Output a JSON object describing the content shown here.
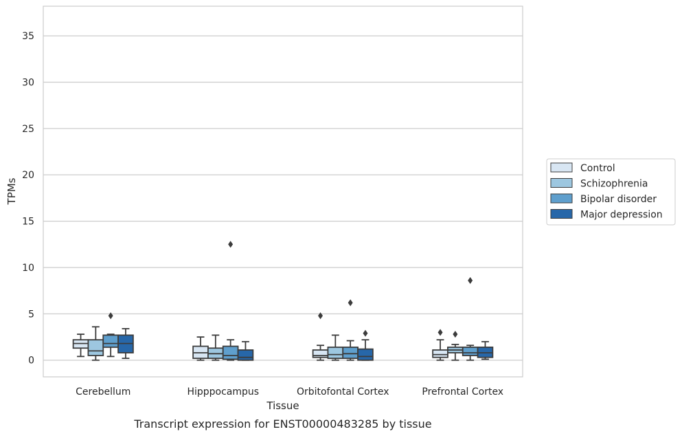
{
  "caption": "Transcript expression for ENST00000483285 by tissue",
  "chart_data": {
    "type": "box",
    "xlabel": "Tissue",
    "ylabel": "TPMs",
    "ylim": [
      -1.8,
      38.2
    ],
    "yticks": [
      0,
      5,
      10,
      15,
      20,
      25,
      30,
      35
    ],
    "grid": "horizontal",
    "legend_position": "right",
    "categories": [
      "Cerebellum",
      "Hipppocampus",
      "Orbitofontal Cortex",
      "Prefrontal Cortex"
    ],
    "series": [
      {
        "name": "Control",
        "color": "#d8e6f3",
        "boxes": [
          {
            "whislo": 0.4,
            "q1": 1.3,
            "med": 1.8,
            "q3": 2.2,
            "whishi": 2.8,
            "fliers": []
          },
          {
            "whislo": 0.0,
            "q1": 0.2,
            "med": 0.8,
            "q3": 1.5,
            "whishi": 2.5,
            "fliers": []
          },
          {
            "whislo": 0.0,
            "q1": 0.3,
            "med": 0.5,
            "q3": 1.1,
            "whishi": 1.6,
            "fliers": [
              4.8
            ]
          },
          {
            "whislo": 0.0,
            "q1": 0.3,
            "med": 0.6,
            "q3": 1.1,
            "whishi": 2.2,
            "fliers": [
              3.0
            ]
          }
        ]
      },
      {
        "name": "Schizophrenia",
        "color": "#9dc7e0",
        "boxes": [
          {
            "whislo": 0.0,
            "q1": 0.5,
            "med": 1.0,
            "q3": 2.2,
            "whishi": 3.6,
            "fliers": []
          },
          {
            "whislo": 0.0,
            "q1": 0.2,
            "med": 0.7,
            "q3": 1.3,
            "whishi": 2.7,
            "fliers": []
          },
          {
            "whislo": 0.0,
            "q1": 0.2,
            "med": 0.6,
            "q3": 1.4,
            "whishi": 2.7,
            "fliers": []
          },
          {
            "whislo": 0.0,
            "q1": 0.8,
            "med": 1.1,
            "q3": 1.4,
            "whishi": 1.7,
            "fliers": [
              2.8
            ]
          }
        ]
      },
      {
        "name": "Bipolar disorder",
        "color": "#5f9fcd",
        "boxes": [
          {
            "whislo": 0.4,
            "q1": 1.4,
            "med": 1.8,
            "q3": 2.7,
            "whishi": 2.8,
            "fliers": [
              4.8
            ]
          },
          {
            "whislo": 0.0,
            "q1": 0.1,
            "med": 0.5,
            "q3": 1.5,
            "whishi": 2.2,
            "fliers": [
              12.5
            ]
          },
          {
            "whislo": 0.0,
            "q1": 0.2,
            "med": 0.7,
            "q3": 1.4,
            "whishi": 2.1,
            "fliers": [
              6.2
            ]
          },
          {
            "whislo": 0.0,
            "q1": 0.5,
            "med": 0.8,
            "q3": 1.4,
            "whishi": 1.6,
            "fliers": [
              8.6
            ]
          }
        ]
      },
      {
        "name": "Major depression",
        "color": "#2767a9",
        "boxes": [
          {
            "whislo": 0.2,
            "q1": 0.8,
            "med": 1.8,
            "q3": 2.7,
            "whishi": 3.4,
            "fliers": []
          },
          {
            "whislo": 0.0,
            "q1": 0.0,
            "med": 0.3,
            "q3": 1.1,
            "whishi": 2.0,
            "fliers": []
          },
          {
            "whislo": 0.0,
            "q1": 0.0,
            "med": 0.4,
            "q3": 1.2,
            "whishi": 2.2,
            "fliers": [
              2.9
            ]
          },
          {
            "whislo": 0.1,
            "q1": 0.3,
            "med": 0.8,
            "q3": 1.4,
            "whishi": 2.0,
            "fliers": []
          }
        ]
      }
    ]
  }
}
